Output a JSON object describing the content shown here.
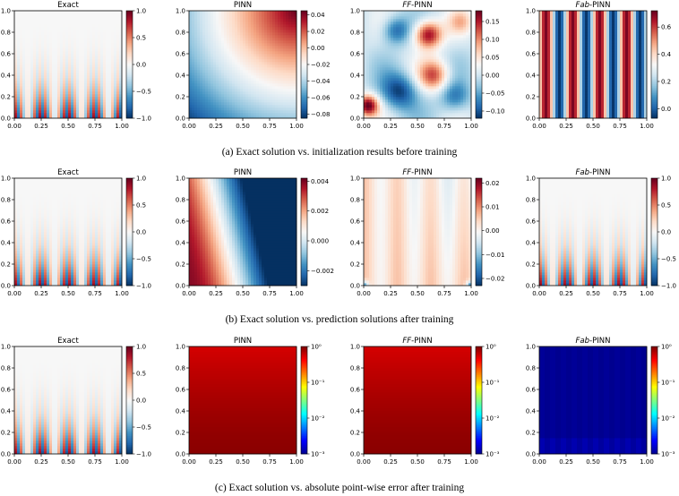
{
  "colors": {
    "rdbu": [
      "#053061",
      "#2166ac",
      "#4393c3",
      "#92c5de",
      "#d1e5f0",
      "#f7f7f7",
      "#fddbc7",
      "#f4a582",
      "#d6604d",
      "#b2182b",
      "#67001f"
    ],
    "jet": [
      "#00008f",
      "#0000ff",
      "#0080ff",
      "#00ffff",
      "#80ff80",
      "#ffff00",
      "#ff8000",
      "#ff0000",
      "#800000"
    ]
  },
  "rows": [
    {
      "caption": "(a) Exact solution vs. initialization results before training"
    },
    {
      "caption": "(b) Exact solution vs. prediction solutions after training"
    },
    {
      "caption": "(c) Exact solution vs. absolute point-wise error after training"
    }
  ],
  "chart_data": [
    {
      "type": "heatmap",
      "row": 0,
      "col": 0,
      "title": "Exact",
      "x_ticks": [
        "0.00",
        "0.25",
        "0.50",
        "0.75",
        "1.00"
      ],
      "y_ticks": [
        "0.0",
        "0.2",
        "0.4",
        "0.6",
        "0.8",
        "1.0"
      ],
      "colorbar": {
        "scale": "linear",
        "min": -1.0,
        "max": 1.0,
        "ticks": [
          {
            "v": -1.0,
            "t": "−1.0"
          },
          {
            "v": -0.5,
            "t": "−0.5"
          },
          {
            "v": 0.0,
            "t": "0.0"
          },
          {
            "v": 0.5,
            "t": "0.5"
          },
          {
            "v": 1.0,
            "t": "1.0"
          }
        ]
      },
      "pattern": "exact"
    },
    {
      "type": "heatmap",
      "row": 0,
      "col": 1,
      "title": "PINN",
      "x_ticks": [
        "0.00",
        "0.25",
        "0.50",
        "0.75",
        "1.00"
      ],
      "y_ticks": [
        "0.0",
        "0.2",
        "0.4",
        "0.6",
        "0.8",
        "1.0"
      ],
      "colorbar": {
        "scale": "linear",
        "min": -0.085,
        "max": 0.045,
        "ticks": [
          {
            "v": -0.08,
            "t": "−0.08"
          },
          {
            "v": -0.06,
            "t": "−0.06"
          },
          {
            "v": -0.04,
            "t": "−0.04"
          },
          {
            "v": -0.02,
            "t": "−0.02"
          },
          {
            "v": 0.0,
            "t": "0.00"
          },
          {
            "v": 0.02,
            "t": "0.02"
          },
          {
            "v": 0.04,
            "t": "0.04"
          }
        ]
      },
      "pattern": "pinn_init"
    },
    {
      "type": "heatmap",
      "row": 0,
      "col": 2,
      "title": "FF-PINN",
      "x_ticks": [
        "0.00",
        "0.25",
        "0.50",
        "0.75",
        "1.00"
      ],
      "y_ticks": [
        "0.0",
        "0.2",
        "0.4",
        "0.6",
        "0.8",
        "1.0"
      ],
      "colorbar": {
        "scale": "linear",
        "min": -0.12,
        "max": 0.18,
        "ticks": [
          {
            "v": -0.1,
            "t": "−0.10"
          },
          {
            "v": -0.05,
            "t": "−0.05"
          },
          {
            "v": 0.0,
            "t": "0.00"
          },
          {
            "v": 0.05,
            "t": "0.05"
          },
          {
            "v": 0.1,
            "t": "0.10"
          },
          {
            "v": 0.15,
            "t": "0.15"
          }
        ]
      },
      "pattern": "ff_init"
    },
    {
      "type": "heatmap",
      "row": 0,
      "col": 3,
      "title": "Fab-PINN",
      "x_ticks": [
        "0.00",
        "0.25",
        "0.50",
        "0.75",
        "1.00"
      ],
      "y_ticks": [
        "0.0",
        "0.2",
        "0.4",
        "0.6",
        "0.8",
        "1.0"
      ],
      "colorbar": {
        "scale": "linear",
        "min": -0.07,
        "max": 0.72,
        "ticks": [
          {
            "v": 0.0,
            "t": "0.0"
          },
          {
            "v": 0.2,
            "t": "0.2"
          },
          {
            "v": 0.4,
            "t": "0.4"
          },
          {
            "v": 0.6,
            "t": "0.6"
          }
        ]
      },
      "pattern": "fab_init"
    },
    {
      "type": "heatmap",
      "row": 1,
      "col": 0,
      "title": "Exact",
      "x_ticks": [
        "0.00",
        "0.25",
        "0.50",
        "0.75",
        "1.00"
      ],
      "y_ticks": [
        "0.0",
        "0.2",
        "0.4",
        "0.6",
        "0.8",
        "1.0"
      ],
      "colorbar": {
        "scale": "linear",
        "min": -1.0,
        "max": 1.0,
        "ticks": [
          {
            "v": -1.0,
            "t": "−1.0"
          },
          {
            "v": -0.5,
            "t": "−0.5"
          },
          {
            "v": 0.0,
            "t": "0.0"
          },
          {
            "v": 0.5,
            "t": "0.5"
          },
          {
            "v": 1.0,
            "t": "1.0"
          }
        ]
      },
      "pattern": "exact"
    },
    {
      "type": "heatmap",
      "row": 1,
      "col": 1,
      "title": "PINN",
      "x_ticks": [
        "0.00",
        "0.25",
        "0.50",
        "0.75",
        "1.00"
      ],
      "y_ticks": [
        "0.0",
        "0.2",
        "0.4",
        "0.6",
        "0.8",
        "1.0"
      ],
      "colorbar": {
        "scale": "linear",
        "min": -0.003,
        "max": 0.0042,
        "ticks": [
          {
            "v": -0.002,
            "t": "−0.002"
          },
          {
            "v": 0.0,
            "t": "0.000"
          },
          {
            "v": 0.002,
            "t": "0.002"
          },
          {
            "v": 0.004,
            "t": "0.004"
          }
        ]
      },
      "pattern": "pinn_pred"
    },
    {
      "type": "heatmap",
      "row": 1,
      "col": 2,
      "title": "FF-PINN",
      "x_ticks": [
        "0.00",
        "0.25",
        "0.50",
        "0.75",
        "1.00"
      ],
      "y_ticks": [
        "0.0",
        "0.2",
        "0.4",
        "0.6",
        "0.8",
        "1.0"
      ],
      "colorbar": {
        "scale": "linear",
        "min": -0.023,
        "max": 0.022,
        "ticks": [
          {
            "v": -0.02,
            "t": "−0.02"
          },
          {
            "v": -0.01,
            "t": "−0.01"
          },
          {
            "v": 0.0,
            "t": "0.00"
          },
          {
            "v": 0.01,
            "t": "0.01"
          },
          {
            "v": 0.02,
            "t": "0.02"
          }
        ]
      },
      "pattern": "ff_pred"
    },
    {
      "type": "heatmap",
      "row": 1,
      "col": 3,
      "title": "Fab-PINN",
      "x_ticks": [
        "0.00",
        "0.25",
        "0.50",
        "0.75",
        "1.00"
      ],
      "y_ticks": [
        "0.0",
        "0.2",
        "0.4",
        "0.6",
        "0.8",
        "1.0"
      ],
      "colorbar": {
        "scale": "linear",
        "min": -1.0,
        "max": 1.0,
        "ticks": [
          {
            "v": -1.0,
            "t": "−1.0"
          },
          {
            "v": -0.5,
            "t": "−0.5"
          },
          {
            "v": 0.0,
            "t": "0.0"
          },
          {
            "v": 0.5,
            "t": "0.5"
          },
          {
            "v": 1.0,
            "t": "1.0"
          }
        ]
      },
      "pattern": "exact"
    },
    {
      "type": "heatmap",
      "row": 2,
      "col": 0,
      "title": "Exact",
      "x_ticks": [
        "0.00",
        "0.25",
        "0.50",
        "0.75",
        "1.00"
      ],
      "y_ticks": [
        "0.0",
        "0.2",
        "0.4",
        "0.6",
        "0.8",
        "1.0"
      ],
      "colorbar": {
        "scale": "linear",
        "min": -1.0,
        "max": 1.0,
        "ticks": [
          {
            "v": -1.0,
            "t": "−1.0"
          },
          {
            "v": -0.5,
            "t": "−0.5"
          },
          {
            "v": 0.0,
            "t": "0.0"
          },
          {
            "v": 0.5,
            "t": "0.5"
          },
          {
            "v": 1.0,
            "t": "1.0"
          }
        ]
      },
      "pattern": "exact"
    },
    {
      "type": "heatmap",
      "row": 2,
      "col": 1,
      "title": "PINN",
      "x_ticks": [
        "0.00",
        "0.25",
        "0.50",
        "0.75",
        "1.00"
      ],
      "y_ticks": [
        "0.0",
        "0.2",
        "0.4",
        "0.6",
        "0.8",
        "1.0"
      ],
      "colorbar": {
        "scale": "log",
        "min": -3,
        "max": 0,
        "ticks": [
          {
            "v": 0,
            "t": "10⁰"
          },
          {
            "v": -1,
            "t": "10⁻¹"
          },
          {
            "v": -2,
            "t": "10⁻²"
          },
          {
            "v": -3,
            "t": "10⁻³"
          }
        ]
      },
      "pattern": "err_big"
    },
    {
      "type": "heatmap",
      "row": 2,
      "col": 2,
      "title": "FF-PINN",
      "x_ticks": [
        "0.00",
        "0.25",
        "0.50",
        "0.75",
        "1.00"
      ],
      "y_ticks": [
        "0.0",
        "0.2",
        "0.4",
        "0.6",
        "0.8",
        "1.0"
      ],
      "colorbar": {
        "scale": "log",
        "min": -3,
        "max": 0,
        "ticks": [
          {
            "v": 0,
            "t": "10⁰"
          },
          {
            "v": -1,
            "t": "10⁻¹"
          },
          {
            "v": -2,
            "t": "10⁻²"
          },
          {
            "v": -3,
            "t": "10⁻³"
          }
        ]
      },
      "pattern": "err_big"
    },
    {
      "type": "heatmap",
      "row": 2,
      "col": 3,
      "title": "Fab-PINN",
      "x_ticks": [
        "0.00",
        "0.25",
        "0.50",
        "0.75",
        "1.00"
      ],
      "y_ticks": [
        "0.0",
        "0.2",
        "0.4",
        "0.6",
        "0.8",
        "1.0"
      ],
      "colorbar": {
        "scale": "log",
        "min": -3,
        "max": 0,
        "ticks": [
          {
            "v": 0,
            "t": "10⁰"
          },
          {
            "v": -1,
            "t": "10⁻¹"
          },
          {
            "v": -2,
            "t": "10⁻²"
          },
          {
            "v": -3,
            "t": "10⁻³"
          }
        ]
      },
      "pattern": "err_small"
    }
  ]
}
